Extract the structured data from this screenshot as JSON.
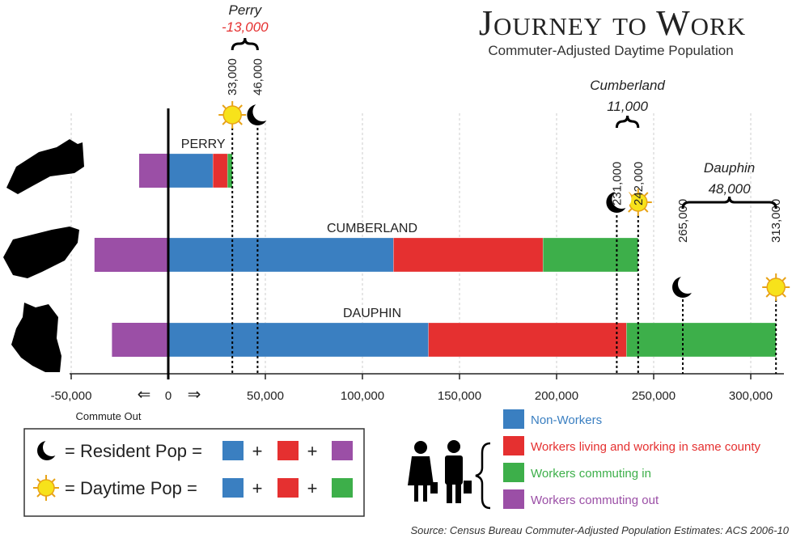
{
  "title": "Journey to Work",
  "subtitle": "Commuter-Adjusted Daytime Population",
  "source": "Source: Census Bureau Commuter-Adjusted Population Estimates: ACS 2006-10",
  "zero_label": "0",
  "commute_out_label": "Commute Out",
  "colors": {
    "non_workers": "#3a7fc1",
    "same_county": "#e53030",
    "commuting_in": "#3daf4a",
    "commuting_out": "#9b4fa6"
  },
  "formulas": {
    "resident_text": "= Resident Pop =",
    "daytime_text": "= Daytime Pop =",
    "plus": "+"
  },
  "chart_data": {
    "type": "bar",
    "orientation": "horizontal",
    "stacked": true,
    "xlim": [
      -50000,
      315000
    ],
    "x_ticks": [
      -50000,
      0,
      50000,
      100000,
      150000,
      200000,
      250000,
      300000
    ],
    "x_tick_labels": [
      "-50,000",
      "0",
      "50,000",
      "100,000",
      "150,000",
      "200,000",
      "250,000",
      "300,000"
    ],
    "grid": "vertical dashed",
    "categories": [
      "PERRY",
      "CUMBERLAND",
      "DAUPHIN"
    ],
    "series": [
      {
        "name": "Non-Workers",
        "values": [
          23000,
          116000,
          134000
        ]
      },
      {
        "name": "Workers living and working in same county",
        "values": [
          7500,
          77000,
          102000
        ]
      },
      {
        "name": "Workers commuting in",
        "values": [
          2500,
          49000,
          77000
        ]
      },
      {
        "name": "Workers commuting out",
        "values": [
          -15000,
          -38000,
          -29000
        ]
      }
    ],
    "annotations": [
      {
        "county": "Perry",
        "daytime": 33000,
        "daytime_label": "33,000",
        "resident": 46000,
        "resident_label": "46,000",
        "difference": "-13,000"
      },
      {
        "county": "Cumberland",
        "daytime": 242000,
        "daytime_label": "242,000",
        "resident": 231000,
        "resident_label": "231,000",
        "difference": "11,000"
      },
      {
        "county": "Dauphin",
        "daytime": 313000,
        "daytime_label": "313,000",
        "resident": 265000,
        "resident_label": "265,000",
        "difference": "48,000"
      }
    ],
    "legend": {
      "placement": "bottom-right",
      "entries": [
        "Non-Workers",
        "Workers living and working in same county",
        "Workers commuting in",
        "Workers commuting out"
      ]
    }
  }
}
